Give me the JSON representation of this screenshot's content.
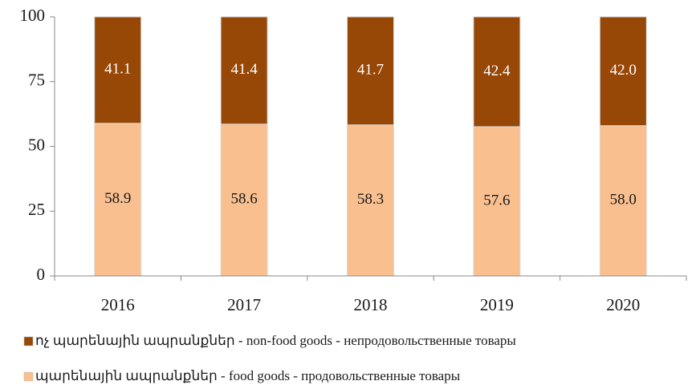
{
  "chart_data": {
    "type": "stacked_bar",
    "categories": [
      "2016",
      "2017",
      "2018",
      "2019",
      "2020"
    ],
    "series": [
      {
        "name": "պարենային ապրանքներ - food goods - продовольственные товары",
        "color": "#f9bf8f",
        "label_color": "#1a1a1a",
        "values": [
          58.9,
          58.6,
          58.3,
          57.6,
          58.0
        ],
        "value_labels": [
          "58.9",
          "58.6",
          "58.3",
          "57.6",
          "58.0"
        ]
      },
      {
        "name": "ոչ պարենային ապրանքներ  - non-food goods - непродовольственные товары",
        "color": "#974706",
        "label_color": "#ffffff",
        "values": [
          41.1,
          41.4,
          41.7,
          42.4,
          42.0
        ],
        "value_labels": [
          "41.1",
          "41.4",
          "41.7",
          "42.4",
          "42.0"
        ]
      }
    ],
    "ylim": [
      0,
      100
    ],
    "yticks": [
      0,
      25,
      50,
      75,
      100
    ],
    "legend": "bottom"
  }
}
